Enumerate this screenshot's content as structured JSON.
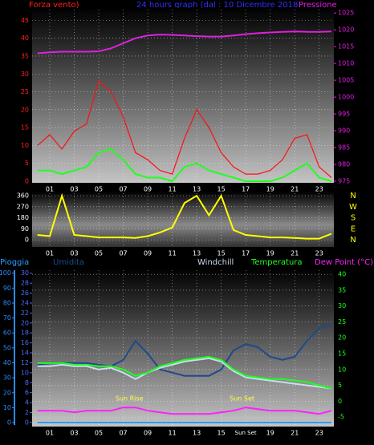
{
  "chart_data": [
    {
      "type": "line",
      "title": "24 hours graph (dal : 10 Dicembre 2018",
      "ylabel": "Forza vento)",
      "y2label": "Pressione",
      "ycolor": "#ff2020",
      "y2color": "#e020e0",
      "x": [
        0,
        1,
        2,
        3,
        4,
        5,
        6,
        7,
        8,
        9,
        10,
        11,
        12,
        13,
        14,
        15,
        16,
        17,
        18,
        19,
        20,
        21,
        22,
        23,
        24
      ],
      "xlim": [
        0,
        24
      ],
      "xticks": [
        {
          "value": 1,
          "label": "01"
        },
        {
          "value": 3,
          "label": "03"
        },
        {
          "value": 5,
          "label": "05"
        },
        {
          "value": 7,
          "label": "07"
        },
        {
          "value": 9,
          "label": "09"
        },
        11,
        13,
        15,
        17,
        19,
        21,
        23
      ],
      "ylim": [
        0,
        48
      ],
      "yticks": [
        0,
        5,
        10,
        15,
        20,
        25,
        30,
        35,
        40,
        45
      ],
      "y2lim": [
        975,
        1026
      ],
      "y2ticks": [
        975,
        980,
        985,
        990,
        995,
        1000,
        1005,
        1010,
        1015,
        1020,
        1025
      ],
      "grid": true,
      "series": [
        {
          "name": "Forza vento)",
          "color": "#ff1010",
          "values": [
            10,
            13,
            9,
            14,
            16,
            28,
            25,
            18,
            8,
            6,
            3,
            2,
            12,
            20,
            15,
            8,
            4,
            2,
            2,
            3,
            6,
            12,
            13,
            4,
            1
          ]
        },
        {
          "color": "#20ff20",
          "values": [
            3,
            3,
            2,
            3,
            4,
            8,
            9,
            6,
            2,
            1,
            1,
            0,
            4,
            5,
            3,
            2,
            1,
            0,
            0,
            0,
            1,
            3,
            5,
            1,
            0
          ]
        },
        {
          "name": "Pressione",
          "color": "#e020e0",
          "axis": "y2",
          "values": [
            1013,
            1013.3,
            1013.5,
            1013.5,
            1013.5,
            1013.6,
            1014.5,
            1016,
            1017.5,
            1018.3,
            1018.6,
            1018.5,
            1018.3,
            1018.1,
            1018,
            1018,
            1018.3,
            1018.7,
            1019,
            1019.2,
            1019.4,
            1019.5,
            1019.4,
            1019.4,
            1019.5
          ]
        }
      ]
    },
    {
      "type": "line",
      "x": [
        0,
        1,
        2,
        3,
        4,
        5,
        6,
        7,
        8,
        9,
        10,
        11,
        12,
        13,
        14,
        15,
        16,
        17,
        18,
        19,
        20,
        21,
        22,
        23,
        24
      ],
      "xlim": [
        0,
        24
      ],
      "xticks": [
        {
          "value": 1,
          "label": "01"
        },
        {
          "value": 3,
          "label": "03"
        },
        {
          "value": 5,
          "label": "05"
        },
        {
          "value": 7,
          "label": "07"
        },
        {
          "value": 9,
          "label": "09"
        },
        11,
        13,
        15,
        17,
        19,
        21,
        23
      ],
      "ylim": [
        -45,
        380
      ],
      "yticks": [
        0,
        90,
        180,
        270,
        360
      ],
      "compass": [
        "N",
        "W",
        "S",
        "E",
        "N"
      ],
      "grid": true,
      "series": [
        {
          "color": "#ffff00",
          "values": [
            40,
            30,
            360,
            40,
            30,
            20,
            20,
            20,
            15,
            30,
            60,
            100,
            300,
            360,
            200,
            360,
            80,
            40,
            30,
            20,
            20,
            15,
            10,
            10,
            50
          ]
        }
      ]
    },
    {
      "type": "line",
      "x": [
        0,
        1,
        2,
        3,
        4,
        5,
        6,
        7,
        8,
        9,
        10,
        11,
        12,
        13,
        14,
        15,
        16,
        17,
        18,
        19,
        20,
        21,
        22,
        23,
        24
      ],
      "xlim": [
        0,
        24
      ],
      "xticks": [
        {
          "value": 1,
          "label": "01"
        },
        {
          "value": 3,
          "label": "03"
        },
        {
          "value": 5,
          "label": "05"
        },
        {
          "value": 7,
          "label": "07"
        },
        {
          "value": 9,
          "label": "09"
        },
        11,
        13,
        15,
        {
          "value": 17,
          "label": "Sun Set"
        },
        19,
        21,
        23
      ],
      "ylim": [
        -1.6,
        102
      ],
      "yticks": [
        0,
        10,
        20,
        30,
        40,
        50,
        60,
        70,
        80,
        90,
        100
      ],
      "y3lim": [
        -0.5,
        30.6
      ],
      "y3ticks": [
        0,
        2,
        4,
        6,
        8,
        10,
        12,
        14,
        16,
        18,
        20,
        22,
        24,
        26,
        28,
        30
      ],
      "y2lim": [
        -7.5,
        41.3
      ],
      "y2ticks": [
        -5,
        0,
        5,
        10,
        15,
        20,
        25,
        30,
        35,
        40
      ],
      "ycolor": "#2a8cff",
      "y3color": "#4a6cff",
      "y2color": "#20ff20",
      "grid": true,
      "annotations": [
        {
          "text": "Sun Rise",
          "x": 7.5,
          "y": 0.8
        },
        {
          "text": "Sun Set",
          "x": 16.7,
          "y": 0.8
        }
      ],
      "series": [
        {
          "name": "Pioggia",
          "color": "#2a9cff",
          "values": [
            0,
            0,
            0,
            0,
            0,
            0,
            0,
            0,
            0,
            0,
            0,
            0,
            0,
            0,
            0,
            0,
            0,
            0,
            0,
            0,
            0,
            0,
            0,
            0,
            0
          ]
        },
        {
          "name": "Umidita",
          "color": "#1e4a8c",
          "axis": "y2",
          "values": [
            11.5,
            12,
            12,
            12,
            12,
            11.5,
            11,
            13,
            19,
            15,
            10,
            9,
            8,
            8,
            8,
            10,
            16,
            18,
            17,
            14,
            13,
            14,
            19,
            23,
            24
          ]
        },
        {
          "name": "Windchill",
          "color": "#c8dcf0",
          "axis": "y2",
          "values": [
            11,
            11,
            11.5,
            11,
            11,
            10,
            10.5,
            9,
            7,
            9,
            10.5,
            11.5,
            12.5,
            13,
            13.5,
            12.5,
            9.5,
            7.5,
            7,
            6.5,
            6,
            5.5,
            5,
            4.5,
            4
          ]
        },
        {
          "name": "Temperatura",
          "color": "#20ff20",
          "axis": "y2",
          "values": [
            12,
            12,
            12,
            11.5,
            11.5,
            11,
            11,
            10,
            8,
            9,
            11,
            12,
            13,
            13.5,
            14,
            13,
            10,
            8,
            7.5,
            7,
            7,
            6.5,
            6,
            5,
            4
          ]
        },
        {
          "name": "Dew Point (°C)",
          "color": "#ff20ff",
          "axis": "y2",
          "values": [
            -3,
            -3,
            -3,
            -3.5,
            -3,
            -3,
            -3,
            -2,
            -2,
            -3,
            -3.5,
            -4,
            -4,
            -4,
            -4,
            -3.5,
            -3,
            -2,
            -2.5,
            -3,
            -3,
            -3,
            -3.5,
            -4,
            -3
          ]
        }
      ]
    }
  ]
}
